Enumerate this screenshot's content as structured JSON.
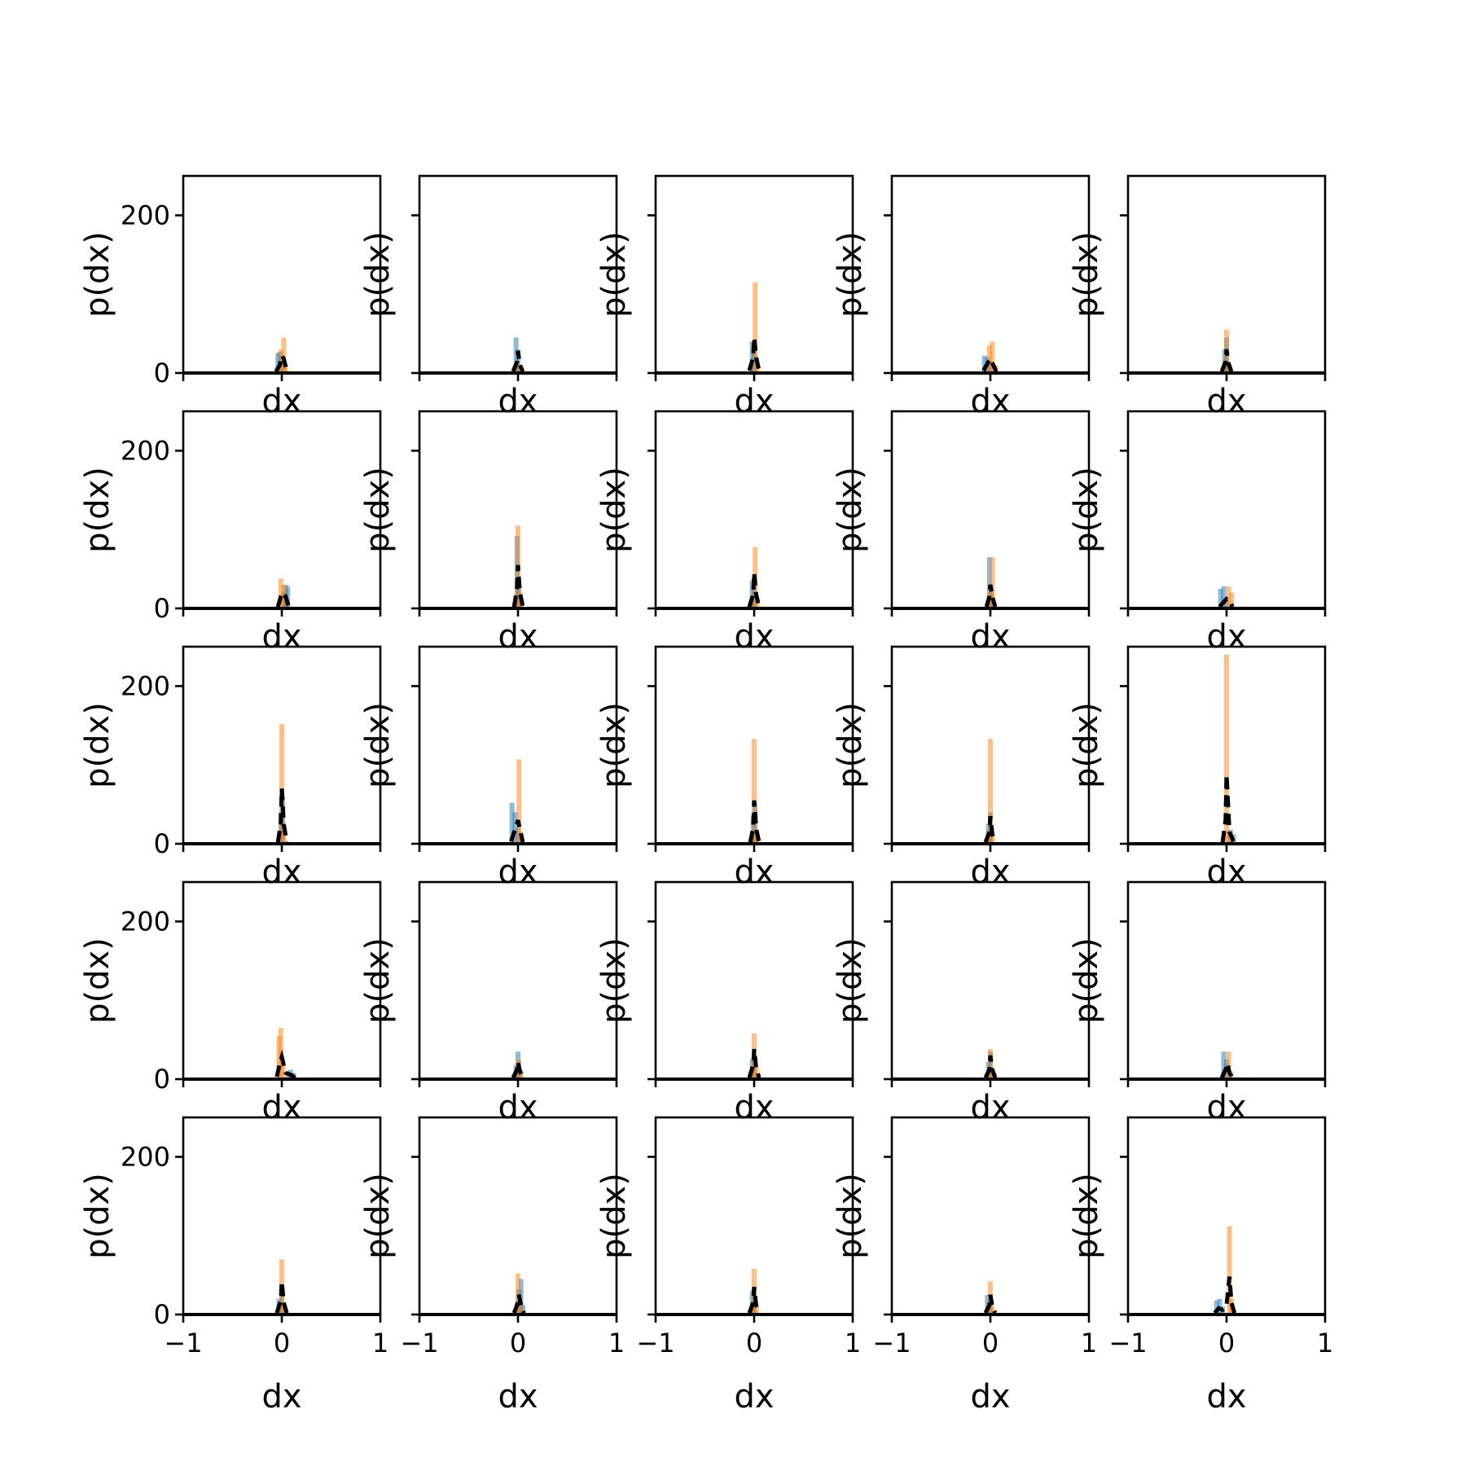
{
  "chart_data": {
    "type": "bar",
    "layout": {
      "rows": 5,
      "cols": 5
    },
    "xlabel": "dx",
    "ylabel": "p(dx)",
    "xlim": [
      -1,
      1
    ],
    "ylim": [
      0,
      250
    ],
    "xticks": [
      "−1",
      "0",
      "1"
    ],
    "yticks": [
      "0",
      "200"
    ],
    "grid": false,
    "legend": "none",
    "colors": {
      "hist_a": "#1f77b4",
      "hist_b": "#ff7f0e",
      "density": "#000000"
    },
    "panels": [
      {
        "hist_a": [
          [
            -0.04,
            25
          ],
          [
            -0.02,
            27
          ],
          [
            0.02,
            12
          ]
        ],
        "hist_b": [
          [
            -0.01,
            30
          ],
          [
            0.02,
            45
          ],
          [
            0.04,
            10
          ]
        ],
        "density": [
          [
            -0.06,
            2
          ],
          [
            -0.02,
            10
          ],
          [
            0.0,
            22
          ],
          [
            0.02,
            18
          ],
          [
            0.05,
            3
          ]
        ]
      },
      {
        "hist_a": [
          [
            -0.02,
            45
          ],
          [
            0.0,
            30
          ],
          [
            0.02,
            10
          ]
        ],
        "hist_b": [
          [
            0.0,
            12
          ],
          [
            0.03,
            8
          ]
        ],
        "density": [
          [
            -0.05,
            2
          ],
          [
            -0.01,
            14
          ],
          [
            0.0,
            28
          ],
          [
            0.02,
            10
          ],
          [
            0.05,
            2
          ]
        ]
      },
      {
        "hist_a": [
          [
            -0.02,
            40
          ],
          [
            0.0,
            25
          ]
        ],
        "hist_b": [
          [
            0.01,
            115
          ],
          [
            0.03,
            15
          ]
        ],
        "density": [
          [
            -0.05,
            3
          ],
          [
            -0.01,
            20
          ],
          [
            0.0,
            45
          ],
          [
            0.02,
            20
          ],
          [
            0.05,
            3
          ]
        ]
      },
      {
        "hist_a": [
          [
            -0.06,
            22
          ],
          [
            -0.03,
            20
          ],
          [
            0.0,
            15
          ]
        ],
        "hist_b": [
          [
            -0.01,
            35
          ],
          [
            0.02,
            40
          ],
          [
            0.05,
            10
          ]
        ],
        "density": [
          [
            -0.07,
            3
          ],
          [
            -0.03,
            12
          ],
          [
            0.0,
            18
          ],
          [
            0.03,
            10
          ],
          [
            0.06,
            2
          ]
        ]
      },
      {
        "hist_a": [
          [
            -0.02,
            30
          ],
          [
            0.0,
            45
          ],
          [
            0.02,
            10
          ]
        ],
        "hist_b": [
          [
            0.0,
            55
          ],
          [
            0.03,
            12
          ]
        ],
        "density": [
          [
            -0.05,
            2
          ],
          [
            -0.01,
            14
          ],
          [
            0.0,
            30
          ],
          [
            0.02,
            12
          ],
          [
            0.05,
            2
          ]
        ]
      },
      {
        "hist_a": [
          [
            0.02,
            20
          ],
          [
            0.04,
            30
          ],
          [
            0.06,
            28
          ]
        ],
        "hist_b": [
          [
            -0.01,
            38
          ],
          [
            0.02,
            30
          ]
        ],
        "density": [
          [
            -0.04,
            2
          ],
          [
            -0.01,
            15
          ],
          [
            0.01,
            20
          ],
          [
            0.04,
            15
          ],
          [
            0.07,
            2
          ]
        ]
      },
      {
        "hist_a": [
          [
            -0.01,
            92
          ],
          [
            0.01,
            30
          ]
        ],
        "hist_b": [
          [
            0.0,
            105
          ],
          [
            0.02,
            20
          ]
        ],
        "density": [
          [
            -0.04,
            2
          ],
          [
            -0.01,
            25
          ],
          [
            0.0,
            55
          ],
          [
            0.02,
            20
          ],
          [
            0.05,
            2
          ]
        ]
      },
      {
        "hist_a": [
          [
            -0.02,
            35
          ],
          [
            0.0,
            42
          ]
        ],
        "hist_b": [
          [
            0.01,
            78
          ],
          [
            0.03,
            12
          ]
        ],
        "density": [
          [
            -0.05,
            2
          ],
          [
            -0.01,
            18
          ],
          [
            0.0,
            45
          ],
          [
            0.02,
            18
          ],
          [
            0.05,
            2
          ]
        ]
      },
      {
        "hist_a": [
          [
            -0.01,
            65
          ],
          [
            0.01,
            20
          ]
        ],
        "hist_b": [
          [
            0.0,
            30
          ],
          [
            0.02,
            65
          ]
        ],
        "density": [
          [
            -0.04,
            2
          ],
          [
            -0.01,
            15
          ],
          [
            0.0,
            30
          ],
          [
            0.02,
            15
          ],
          [
            0.05,
            2
          ]
        ]
      },
      {
        "hist_a": [
          [
            -0.06,
            25
          ],
          [
            -0.03,
            28
          ],
          [
            0.0,
            12
          ]
        ],
        "hist_b": [
          [
            0.02,
            28
          ],
          [
            0.05,
            20
          ]
        ],
        "density": [
          [
            -0.07,
            2
          ],
          [
            -0.03,
            8
          ],
          [
            0.0,
            12
          ],
          [
            0.03,
            10
          ],
          [
            0.06,
            2
          ]
        ]
      },
      {
        "hist_a": [
          [
            -0.01,
            40
          ],
          [
            0.01,
            60
          ]
        ],
        "hist_b": [
          [
            0.0,
            152
          ],
          [
            0.02,
            20
          ]
        ],
        "density": [
          [
            -0.04,
            2
          ],
          [
            -0.01,
            25
          ],
          [
            0.0,
            70
          ],
          [
            0.02,
            25
          ],
          [
            0.05,
            2
          ]
        ]
      },
      {
        "hist_a": [
          [
            -0.06,
            52
          ],
          [
            -0.03,
            40
          ],
          [
            0.0,
            20
          ]
        ],
        "hist_b": [
          [
            0.01,
            107
          ],
          [
            0.03,
            15
          ]
        ],
        "density": [
          [
            -0.07,
            3
          ],
          [
            -0.03,
            18
          ],
          [
            0.0,
            30
          ],
          [
            0.02,
            18
          ],
          [
            0.05,
            2
          ]
        ]
      },
      {
        "hist_a": [
          [
            -0.01,
            35
          ],
          [
            0.01,
            50
          ]
        ],
        "hist_b": [
          [
            0.0,
            133
          ],
          [
            0.02,
            12
          ]
        ],
        "density": [
          [
            -0.04,
            2
          ],
          [
            -0.01,
            20
          ],
          [
            0.0,
            55
          ],
          [
            0.02,
            20
          ],
          [
            0.05,
            2
          ]
        ]
      },
      {
        "hist_a": [
          [
            -0.02,
            25
          ],
          [
            0.0,
            40
          ]
        ],
        "hist_b": [
          [
            0.0,
            133
          ],
          [
            0.02,
            10
          ]
        ],
        "density": [
          [
            -0.05,
            2
          ],
          [
            -0.01,
            15
          ],
          [
            0.0,
            35
          ],
          [
            0.02,
            12
          ],
          [
            0.05,
            2
          ]
        ]
      },
      {
        "hist_a": [
          [
            0.04,
            18
          ],
          [
            0.07,
            12
          ]
        ],
        "hist_b": [
          [
            0.0,
            240
          ],
          [
            0.02,
            15
          ]
        ],
        "density": [
          [
            -0.04,
            2
          ],
          [
            -0.01,
            30
          ],
          [
            0.0,
            88
          ],
          [
            0.03,
            15
          ],
          [
            0.07,
            3
          ]
        ]
      },
      {
        "hist_a": [
          [
            0.06,
            10
          ],
          [
            0.09,
            12
          ],
          [
            0.12,
            8
          ]
        ],
        "hist_b": [
          [
            -0.03,
            55
          ],
          [
            -0.01,
            65
          ],
          [
            0.01,
            20
          ]
        ],
        "density": [
          [
            -0.05,
            3
          ],
          [
            -0.02,
            20
          ],
          [
            0.0,
            28
          ],
          [
            0.04,
            8
          ],
          [
            0.1,
            5
          ],
          [
            0.14,
            1
          ]
        ]
      },
      {
        "hist_a": [
          [
            -0.02,
            18
          ],
          [
            0.0,
            35
          ],
          [
            0.02,
            12
          ]
        ],
        "hist_b": [
          [
            0.01,
            25
          ],
          [
            0.03,
            10
          ]
        ],
        "density": [
          [
            -0.05,
            2
          ],
          [
            -0.01,
            12
          ],
          [
            0.0,
            22
          ],
          [
            0.02,
            10
          ],
          [
            0.05,
            2
          ]
        ]
      },
      {
        "hist_a": [
          [
            -0.02,
            25
          ],
          [
            0.0,
            30
          ]
        ],
        "hist_b": [
          [
            0.0,
            58
          ],
          [
            0.02,
            15
          ]
        ],
        "density": [
          [
            -0.05,
            2
          ],
          [
            -0.01,
            18
          ],
          [
            0.0,
            38
          ],
          [
            0.02,
            15
          ],
          [
            0.05,
            2
          ]
        ]
      },
      {
        "hist_a": [
          [
            -0.02,
            22
          ],
          [
            0.0,
            35
          ]
        ],
        "hist_b": [
          [
            0.0,
            38
          ],
          [
            0.02,
            12
          ]
        ],
        "density": [
          [
            -0.05,
            2
          ],
          [
            -0.01,
            12
          ],
          [
            0.0,
            30
          ],
          [
            0.02,
            12
          ],
          [
            0.05,
            2
          ]
        ]
      },
      {
        "hist_a": [
          [
            -0.03,
            35
          ],
          [
            0.0,
            25
          ]
        ],
        "hist_b": [
          [
            0.02,
            35
          ],
          [
            0.04,
            10
          ]
        ],
        "density": [
          [
            -0.05,
            2
          ],
          [
            -0.01,
            12
          ],
          [
            0.01,
            20
          ],
          [
            0.03,
            8
          ],
          [
            0.06,
            2
          ]
        ]
      },
      {
        "hist_a": [
          [
            -0.03,
            20
          ],
          [
            0.0,
            30
          ]
        ],
        "hist_b": [
          [
            0.0,
            70
          ],
          [
            0.02,
            15
          ]
        ],
        "density": [
          [
            -0.05,
            2
          ],
          [
            -0.01,
            18
          ],
          [
            0.0,
            42
          ],
          [
            0.02,
            15
          ],
          [
            0.05,
            2
          ]
        ]
      },
      {
        "hist_a": [
          [
            0.01,
            32
          ],
          [
            0.03,
            45
          ],
          [
            0.05,
            12
          ]
        ],
        "hist_b": [
          [
            0.0,
            52
          ],
          [
            0.02,
            15
          ]
        ],
        "density": [
          [
            -0.04,
            2
          ],
          [
            -0.01,
            12
          ],
          [
            0.01,
            25
          ],
          [
            0.03,
            12
          ],
          [
            0.06,
            2
          ]
        ]
      },
      {
        "hist_a": [
          [
            -0.02,
            30
          ],
          [
            0.0,
            35
          ]
        ],
        "hist_b": [
          [
            0.0,
            58
          ],
          [
            0.02,
            10
          ]
        ],
        "density": [
          [
            -0.05,
            2
          ],
          [
            -0.01,
            15
          ],
          [
            0.0,
            35
          ],
          [
            0.02,
            12
          ],
          [
            0.05,
            2
          ]
        ]
      },
      {
        "hist_a": [
          [
            -0.03,
            25
          ],
          [
            0.0,
            20
          ]
        ],
        "hist_b": [
          [
            0.0,
            42
          ],
          [
            0.02,
            10
          ]
        ],
        "density": [
          [
            -0.05,
            2
          ],
          [
            -0.01,
            12
          ],
          [
            0.0,
            25
          ],
          [
            0.02,
            10
          ],
          [
            0.05,
            2
          ]
        ]
      },
      {
        "hist_a": [
          [
            -0.1,
            18
          ],
          [
            -0.07,
            20
          ],
          [
            -0.04,
            10
          ]
        ],
        "hist_b": [
          [
            0.03,
            112
          ],
          [
            0.05,
            20
          ]
        ],
        "density": [
          [
            -0.12,
            2
          ],
          [
            -0.08,
            8
          ],
          [
            -0.04,
            6
          ],
          [
            0.0,
            12
          ],
          [
            0.03,
            48
          ],
          [
            0.05,
            15
          ],
          [
            0.08,
            2
          ]
        ]
      }
    ]
  }
}
